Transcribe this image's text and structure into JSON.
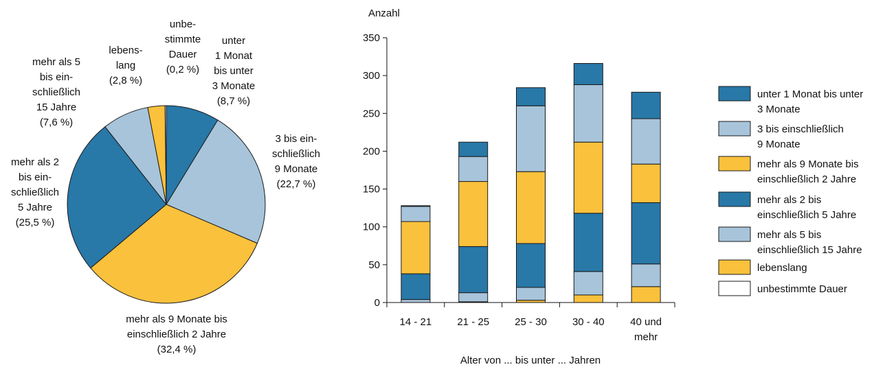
{
  "colors": {
    "dark_blue": "#2878a8",
    "light_blue": "#a7c4da",
    "yellow": "#f9c13c",
    "white": "#ffffff",
    "outline": "#1a1a1a"
  },
  "chart_data": [
    {
      "type": "pie",
      "slices": [
        {
          "label_lines": [
            "unter",
            "1 Monat",
            "bis unter",
            "3 Monate",
            "(8,7 %)"
          ],
          "value": 8.7,
          "color": "#2878a8"
        },
        {
          "label_lines": [
            "3 bis ein-",
            "schließlich",
            "9 Monate",
            "(22,7 %)"
          ],
          "value": 22.7,
          "color": "#a7c4da"
        },
        {
          "label_lines": [
            "mehr als 9 Monate bis",
            "einschließlich 2 Jahre",
            "(32,4 %)"
          ],
          "value": 32.4,
          "color": "#f9c13c"
        },
        {
          "label_lines": [
            "mehr als 2",
            "bis ein-",
            "schließlich",
            "5 Jahre",
            "(25,5 %)"
          ],
          "value": 25.5,
          "color": "#2878a8"
        },
        {
          "label_lines": [
            "mehr als 5",
            "bis ein-",
            "schließlich",
            "15 Jahre",
            "(7,6 %)"
          ],
          "value": 7.6,
          "color": "#a7c4da"
        },
        {
          "label_lines": [
            "lebens-",
            "lang",
            "(2,8 %)"
          ],
          "value": 2.8,
          "color": "#f9c13c"
        },
        {
          "label_lines": [
            "unbe-",
            "stimmte",
            "Dauer",
            "(0,2 %)"
          ],
          "value": 0.2,
          "color": "#ffffff"
        }
      ]
    },
    {
      "type": "bar",
      "stacked": true,
      "ylabel": "Anzahl",
      "xlabel": "Alter von ... bis unter ... Jahren",
      "ylim": [
        0,
        350
      ],
      "yticks": [
        0,
        50,
        100,
        150,
        200,
        250,
        300,
        350
      ],
      "categories": [
        {
          "lines": [
            "14 - 21"
          ]
        },
        {
          "lines": [
            "21 - 25"
          ]
        },
        {
          "lines": [
            "25 - 30"
          ]
        },
        {
          "lines": [
            "30 - 40"
          ]
        },
        {
          "lines": [
            "40 und",
            "mehr"
          ]
        }
      ],
      "series": [
        {
          "name": "unbestimmte Dauer",
          "color": "#ffffff",
          "values": [
            0,
            0,
            0,
            0,
            0
          ]
        },
        {
          "name": "lebenslang",
          "color": "#f9c13c",
          "values": [
            0,
            1,
            3,
            10,
            21
          ]
        },
        {
          "name": "mehr als 5 bis einschließlich 15 Jahre",
          "color": "#a7c4da",
          "values": [
            4,
            12,
            17,
            31,
            30
          ]
        },
        {
          "name": "mehr als 2 bis einschließlich 5 Jahre",
          "color": "#2878a8",
          "values": [
            34,
            61,
            58,
            77,
            81
          ]
        },
        {
          "name": "mehr als 9 Monate bis einschließlich 2 Jahre",
          "color": "#f9c13c",
          "values": [
            69,
            86,
            95,
            94,
            51
          ]
        },
        {
          "name": "3 bis einschließlich 9 Monate",
          "color": "#a7c4da",
          "values": [
            20,
            33,
            87,
            76,
            60
          ]
        },
        {
          "name": "unter 1 Monat bis unter 3 Monate",
          "color": "#2878a8",
          "values": [
            1,
            19,
            24,
            28,
            35
          ]
        }
      ],
      "legend": {
        "position": "right",
        "entries": [
          {
            "lines": [
              "unter 1 Monat bis unter",
              "3 Monate"
            ],
            "color": "#2878a8"
          },
          {
            "lines": [
              "3 bis einschließlich",
              "9 Monate"
            ],
            "color": "#a7c4da"
          },
          {
            "lines": [
              "mehr als 9 Monate bis",
              "einschließlich 2 Jahre"
            ],
            "color": "#f9c13c"
          },
          {
            "lines": [
              "mehr als 2 bis",
              "einschließlich 5 Jahre"
            ],
            "color": "#2878a8"
          },
          {
            "lines": [
              "mehr als 5 bis",
              "einschließlich 15 Jahre"
            ],
            "color": "#a7c4da"
          },
          {
            "lines": [
              "lebenslang"
            ],
            "color": "#f9c13c"
          },
          {
            "lines": [
              "unbestimmte Dauer"
            ],
            "color": "#ffffff"
          }
        ]
      }
    }
  ]
}
